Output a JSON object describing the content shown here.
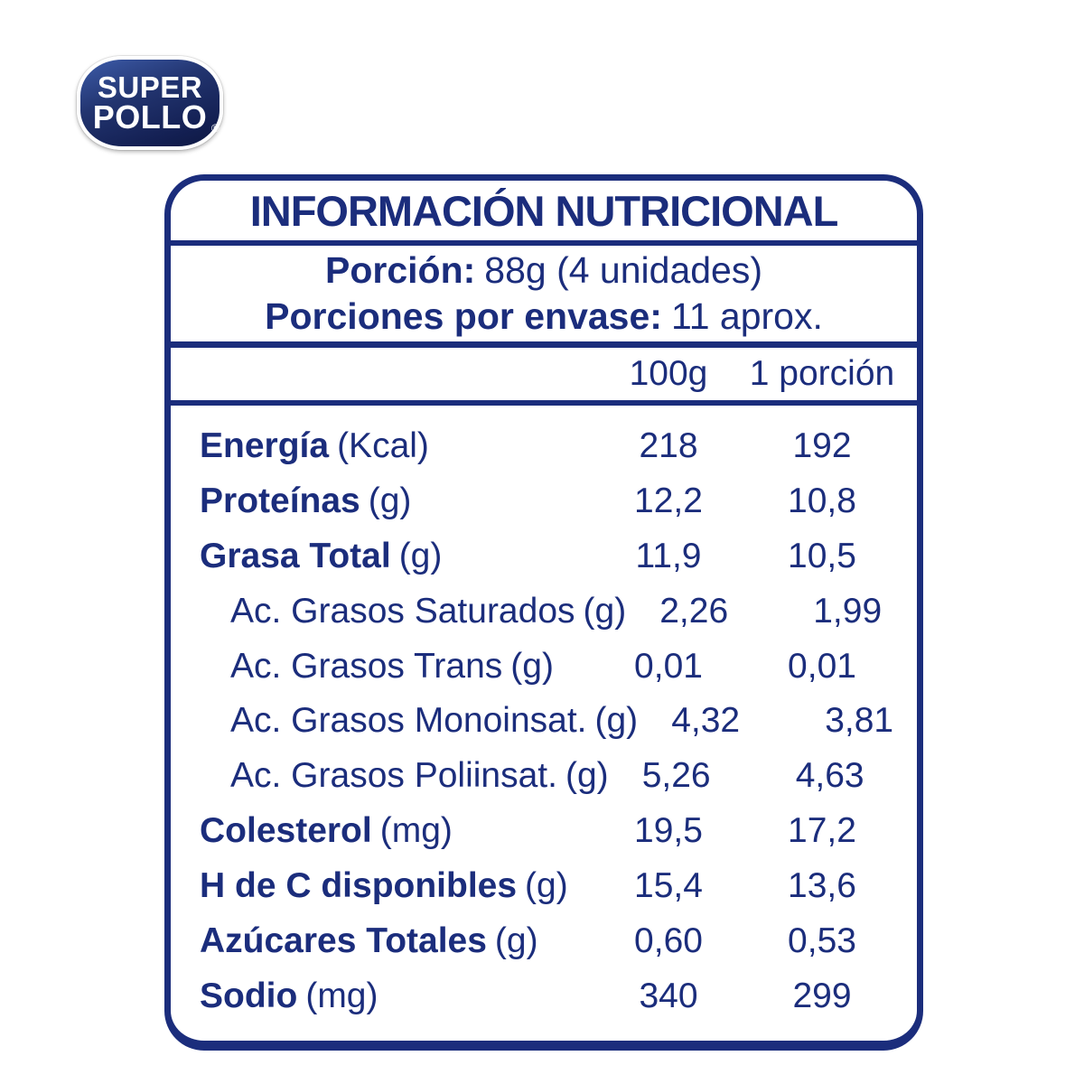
{
  "brand": {
    "line1": "SUPER",
    "line2": "POLLO",
    "registered": "®"
  },
  "panel": {
    "title": "INFORMACIÓN NUTRICIONAL",
    "serving": {
      "portion_label": "Porción:",
      "portion_value": "88g (4 unidades)",
      "per_container_label": "Porciones por envase:",
      "per_container_value": "11 aprox."
    },
    "columns": {
      "col1": "100g",
      "col2": "1 porción"
    },
    "rows": [
      {
        "name": "Energía",
        "unit": "(Kcal)",
        "per100g": "218",
        "per_portion": "192"
      },
      {
        "name": "Proteínas",
        "unit": "(g)",
        "per100g": "12,2",
        "per_portion": "10,8"
      },
      {
        "name": "Grasa Total",
        "unit": "(g)",
        "per100g": "11,9",
        "per_portion": "10,5"
      },
      {
        "name": "Ac. Grasos Saturados",
        "unit": "(g)",
        "per100g": "2,26",
        "per_portion": "1,99"
      },
      {
        "name": "Ac. Grasos Trans",
        "unit": "(g)",
        "per100g": "0,01",
        "per_portion": "0,01"
      },
      {
        "name": "Ac. Grasos Monoinsat.",
        "unit": "(g)",
        "per100g": "4,32",
        "per_portion": "3,81"
      },
      {
        "name": "Ac. Grasos Poliinsat.",
        "unit": "(g)",
        "per100g": "5,26",
        "per_portion": "4,63"
      },
      {
        "name": "Colesterol",
        "unit": "(mg)",
        "per100g": "19,5",
        "per_portion": "17,2"
      },
      {
        "name": "H de C disponibles",
        "unit": "(g)",
        "per100g": "15,4",
        "per_portion": "13,6"
      },
      {
        "name": "Azúcares Totales",
        "unit": "(g)",
        "per100g": "0,60",
        "per_portion": "0,53"
      },
      {
        "name": "Sodio",
        "unit": "(mg)",
        "per100g": "340",
        "per_portion": "299"
      }
    ]
  },
  "colors": {
    "navy_text": "#1b2d7c",
    "logo_navy": "#16214f",
    "background": "#ffffff"
  }
}
